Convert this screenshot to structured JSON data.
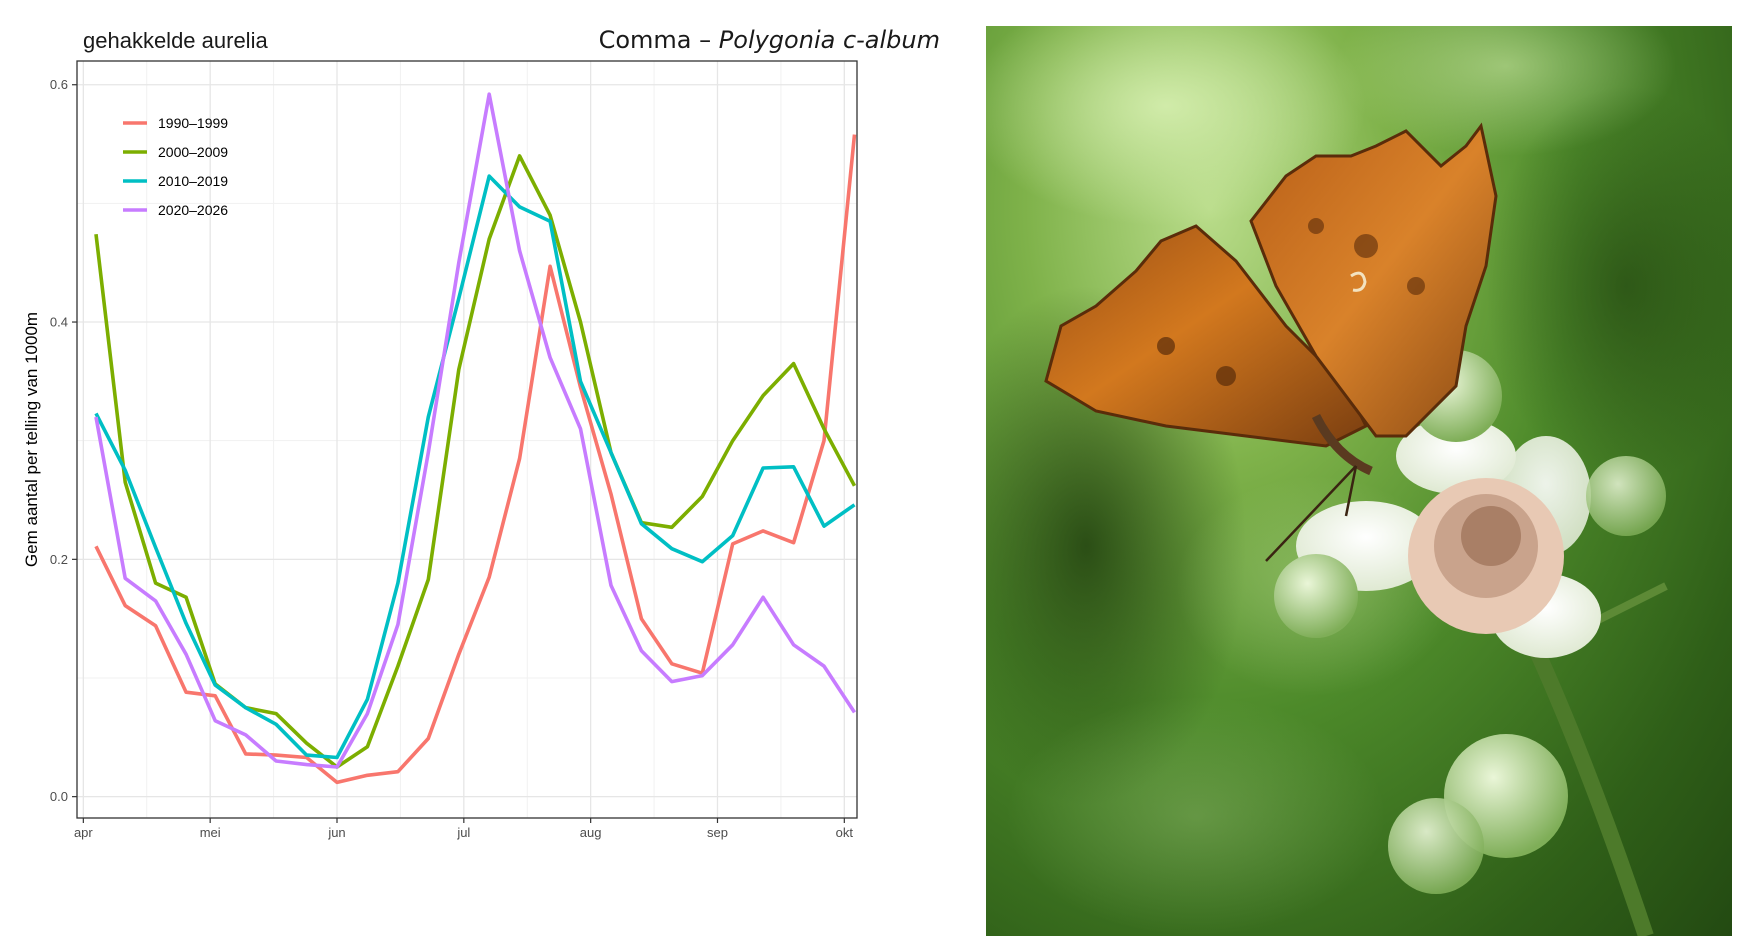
{
  "subtitle": "gehakkelde aurelia",
  "species": {
    "common": "Comma",
    "dash": " – ",
    "scientific": "Polygonia c-album"
  },
  "photo": {
    "alt": "Comma butterfly (Polygonia c-album) on a bramble flower"
  },
  "chart_data": {
    "type": "line",
    "title": "gehakkelde aurelia",
    "xlabel": "",
    "ylabel": "Gem aantal per telling van 1000m",
    "xlim": [
      -0.05,
      6.1
    ],
    "ylim": [
      -0.018,
      0.62
    ],
    "x_ticks": [
      0,
      1,
      2,
      3,
      4,
      5,
      6
    ],
    "x_tick_labels": [
      "apr",
      "mei",
      "jun",
      "jul",
      "aug",
      "sep",
      "okt"
    ],
    "y_ticks": [
      0.0,
      0.2,
      0.4,
      0.6
    ],
    "y_tick_labels": [
      "0.0",
      "0.2",
      "0.4",
      "0.6"
    ],
    "grid": true,
    "legend_position": "top-left",
    "x": [
      0.1,
      0.33,
      0.57,
      0.81,
      1.04,
      1.28,
      1.52,
      1.76,
      2.0,
      2.24,
      2.48,
      2.72,
      2.96,
      3.2,
      3.44,
      3.68,
      3.92,
      4.16,
      4.4,
      4.64,
      4.88,
      5.12,
      5.36,
      5.6,
      5.84,
      6.08
    ],
    "series": [
      {
        "name": "1990–1999",
        "color": "#F8766D",
        "values": [
          0.211,
          0.161,
          0.144,
          0.088,
          0.085,
          0.036,
          0.035,
          0.033,
          0.012,
          0.018,
          0.021,
          0.049,
          0.12,
          0.185,
          0.285,
          0.447,
          0.345,
          0.255,
          0.15,
          0.112,
          0.104,
          0.213,
          0.224,
          0.214,
          0.3,
          0.558
        ]
      },
      {
        "name": "2000–2009",
        "color": "#7CAE00",
        "values": [
          0.474,
          0.265,
          0.18,
          0.168,
          0.095,
          0.075,
          0.07,
          0.045,
          0.025,
          0.042,
          0.11,
          0.183,
          0.36,
          0.47,
          0.54,
          0.49,
          0.4,
          0.29,
          0.231,
          0.227,
          0.253,
          0.3,
          0.338,
          0.365,
          0.31,
          0.262
        ]
      },
      {
        "name": "2010–2019",
        "color": "#00BFC4",
        "values": [
          0.323,
          0.275,
          0.21,
          0.146,
          0.094,
          0.075,
          0.061,
          0.035,
          0.033,
          0.082,
          0.18,
          0.32,
          0.42,
          0.523,
          0.497,
          0.485,
          0.35,
          0.29,
          0.23,
          0.209,
          0.198,
          0.22,
          0.277,
          0.278,
          0.228,
          0.246
        ]
      },
      {
        "name": "2020–2026",
        "color": "#C77CFF",
        "values": [
          0.32,
          0.184,
          0.165,
          0.12,
          0.064,
          0.052,
          0.03,
          0.027,
          0.025,
          0.07,
          0.145,
          0.29,
          0.45,
          0.592,
          0.46,
          0.37,
          0.31,
          0.178,
          0.123,
          0.097,
          0.102,
          0.128,
          0.168,
          0.128,
          0.11,
          0.071
        ]
      }
    ]
  }
}
